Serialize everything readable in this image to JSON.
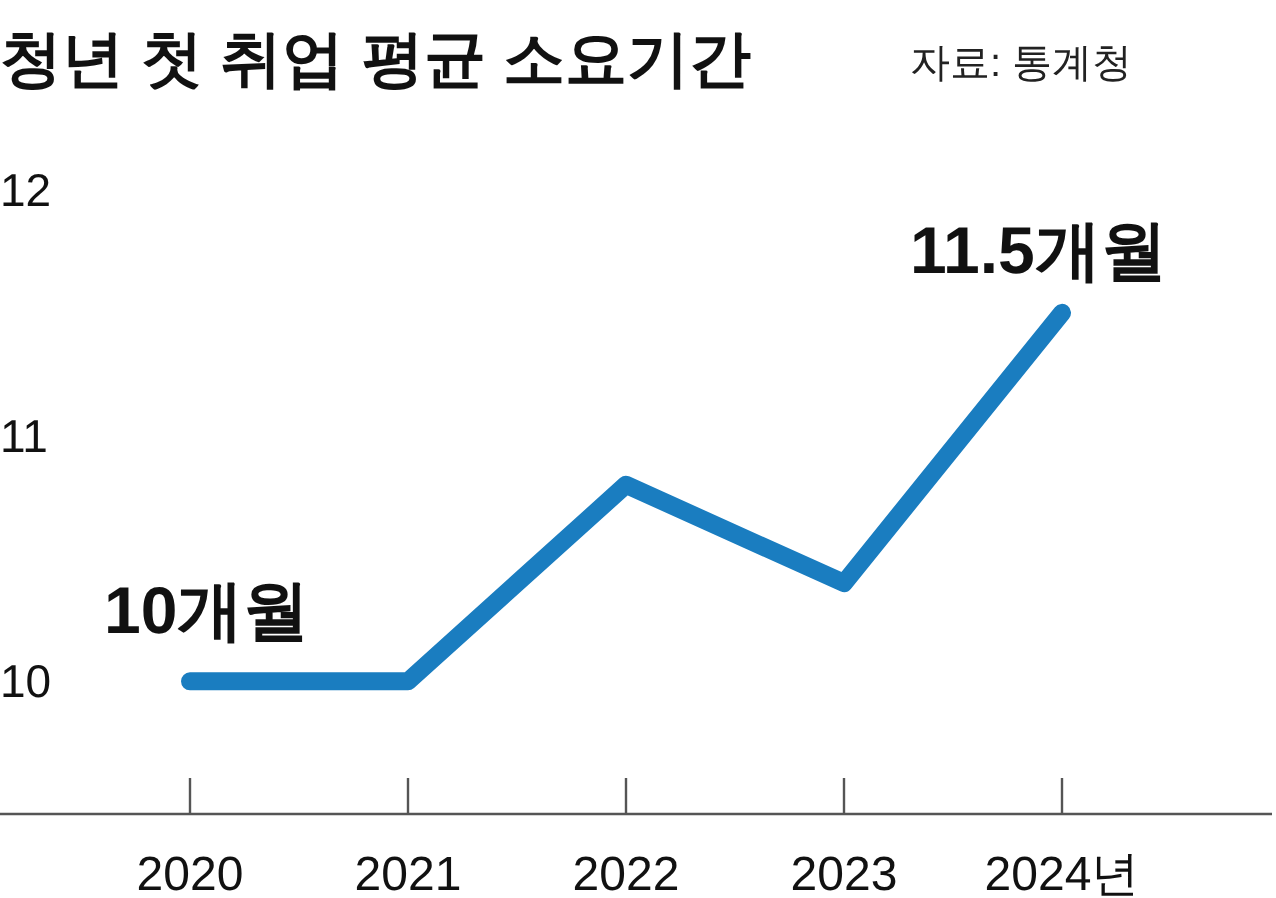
{
  "chart_data": {
    "type": "line",
    "title": "청년 첫 취업 평균 소요기간",
    "categories": [
      "2020",
      "2021",
      "2022",
      "2023",
      "2024년"
    ],
    "values": [
      10,
      10,
      10.8,
      10.4,
      11.5
    ],
    "color": "#1a7dc0",
    "ylim": [
      9.46,
      12
    ],
    "yticks": [
      10,
      11,
      12
    ],
    "annotations": [
      {
        "text": "10개월",
        "x": "2020",
        "y": 10
      },
      {
        "text": "11.5개월",
        "x": "2024년",
        "y": 11.5
      },
      "자료: 통계청"
    ]
  }
}
